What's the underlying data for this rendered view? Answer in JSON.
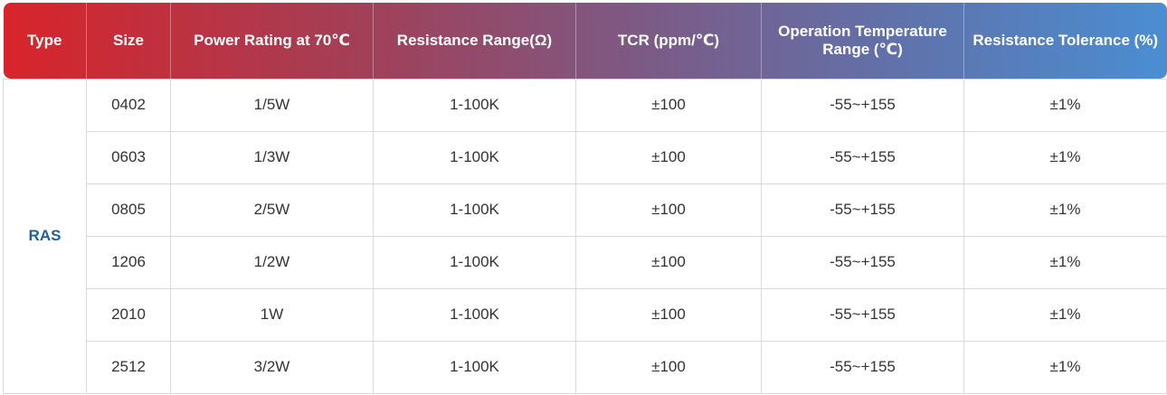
{
  "table": {
    "headers": [
      "Type",
      "Size",
      "Power Rating at 70℃",
      "Resistance Range(Ω)",
      "TCR (ppm/℃)",
      "Operation Temperature Range (℃)",
      "Resistance Tolerance (%)"
    ],
    "type_value": "RAS",
    "rows": [
      [
        "0402",
        "1/5W",
        "1-100K",
        "±100",
        "-55~+155",
        "±1%"
      ],
      [
        "0603",
        "1/3W",
        "1-100K",
        "±100",
        "-55~+155",
        "±1%"
      ],
      [
        "0805",
        "2/5W",
        "1-100K",
        "±100",
        "-55~+155",
        "±1%"
      ],
      [
        "1206",
        "1/2W",
        "1-100K",
        "±100",
        "-55~+155",
        "±1%"
      ],
      [
        "2010",
        "1W",
        "1-100K",
        "±100",
        "-55~+155",
        "±1%"
      ],
      [
        "2512",
        "3/2W",
        "1-100K",
        "±100",
        "-55~+155",
        "±1%"
      ]
    ]
  },
  "colors": {
    "header_gradient_start": "#d8242a",
    "header_gradient_end": "#4a8ed2",
    "type_text": "#1f5f9a",
    "cell_text": "#333333",
    "grid_line": "#d9d9d9"
  }
}
